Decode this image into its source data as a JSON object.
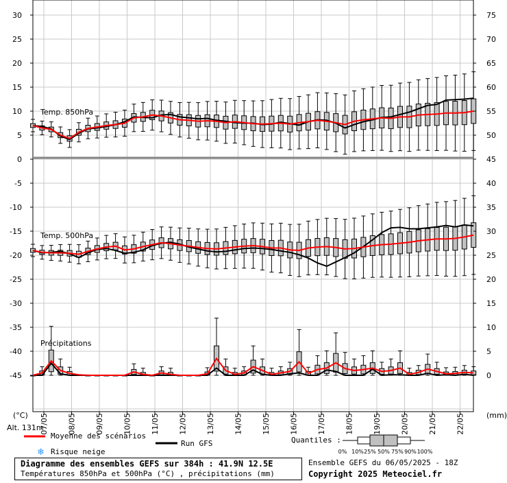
{
  "header": {
    "title": "Diagramme des ensembles GEFS sur 384h : 41.9N 12.5E",
    "subtitle": "Températures 850hPa et 500hPa (°C) , précipitations (mm)",
    "run_info": "Ensemble GEFS du 06/05/2025 - 18Z",
    "copyright": "Copyright 2025 Meteociel.fr"
  },
  "labels": {
    "temp850": "Temp. 850hPa",
    "temp500": "Temp. 500hPa",
    "precip": "Précipitations",
    "unit_left": "(°C)",
    "unit_right": "(mm)",
    "altitude": "Alt. 131m"
  },
  "legend": {
    "mean": "Moyenne des scénarios",
    "run": "Run GFS",
    "snow": "Risque neige",
    "quantiles": "Quantiles :",
    "quantile_ticks": [
      "0%",
      "10%",
      "25%",
      "50%",
      "75%",
      "90%",
      "100%"
    ]
  },
  "colors": {
    "mean": "#ff0000",
    "run": "#000000",
    "box": "#c0c0c0",
    "grid": "#c8c8c8",
    "snow": "#3399ff"
  },
  "chart_data": {
    "type": "box",
    "x_dates": [
      "07/05",
      "08/05",
      "09/05",
      "10/05",
      "11/05",
      "12/05",
      "13/05",
      "14/05",
      "15/05",
      "16/05",
      "17/05",
      "18/05",
      "19/05",
      "20/05",
      "21/05",
      "22/05"
    ],
    "left_axis_ticks": [
      30,
      25,
      20,
      15,
      10,
      5,
      0,
      -5,
      -10,
      -15,
      -20,
      -25,
      -30,
      -35,
      -40,
      -45
    ],
    "right_axis_ticks": [
      75,
      70,
      65,
      60,
      55,
      50,
      45,
      40,
      35,
      30,
      25,
      20,
      15,
      10,
      5,
      0
    ],
    "grid": true,
    "series": [
      {
        "name": "Temp. 850hPa",
        "mean": [
          7,
          6.5,
          6.2,
          5,
          4.3,
          5.6,
          6.4,
          6.7,
          7,
          7.2,
          7.5,
          8.6,
          8.8,
          9.2,
          9,
          8.6,
          8.2,
          8.1,
          7.9,
          8,
          7.9,
          7.6,
          7.8,
          7.6,
          7.4,
          7.3,
          7.4,
          7.5,
          7.3,
          7.6,
          7.8,
          8.1,
          7.9,
          7.6,
          7.2,
          7.9,
          8.2,
          8.4,
          8.6,
          8.5,
          8.8,
          8.8,
          9.2,
          9.3,
          9.4,
          9.6,
          9.6,
          9.7,
          10
        ],
        "run": [
          7,
          6.8,
          6.3,
          4.8,
          4.1,
          5.4,
          6.3,
          6.5,
          6.8,
          7.2,
          7.8,
          8.8,
          8.7,
          8.6,
          9.2,
          9.3,
          8.8,
          8.6,
          8.4,
          8.5,
          8.1,
          7.9,
          7.6,
          7.5,
          7.5,
          7.2,
          7.3,
          7.7,
          7.4,
          7.1,
          7.8,
          8.2,
          8.1,
          7.5,
          6.5,
          7.2,
          7.8,
          8.2,
          8.7,
          8.8,
          9.3,
          9.8,
          10.5,
          11.2,
          11.4,
          12.3,
          12.4,
          12.5,
          12.7
        ]
      },
      {
        "name": "Temp. 500hPa",
        "mean": [
          -19,
          -19.4,
          -19.5,
          -19.5,
          -19.6,
          -19.8,
          -19.2,
          -18.7,
          -18.3,
          -18.1,
          -18.9,
          -18.7,
          -18.2,
          -17.8,
          -17.4,
          -17.6,
          -17.9,
          -18.1,
          -18.4,
          -18.6,
          -18.7,
          -18.5,
          -18.3,
          -18.1,
          -18,
          -18.2,
          -18.5,
          -18.5,
          -18.9,
          -19,
          -18.5,
          -18.3,
          -18.2,
          -18.4,
          -18.7,
          -18.6,
          -18.3,
          -18,
          -17.8,
          -17.7,
          -17.5,
          -17.3,
          -17,
          -16.8,
          -16.6,
          -16.6,
          -16.5,
          -16.2,
          -15.8
        ],
        "run": [
          -19,
          -19.5,
          -19.4,
          -19.2,
          -19.7,
          -20.5,
          -19.5,
          -18.8,
          -18.6,
          -19,
          -19.6,
          -19.4,
          -18.9,
          -18,
          -17.5,
          -17.3,
          -17.7,
          -18.3,
          -18.7,
          -19.1,
          -19.3,
          -19.2,
          -18.9,
          -18.6,
          -18.5,
          -18.6,
          -18.8,
          -19.1,
          -19.4,
          -19.9,
          -20.6,
          -21.6,
          -22.3,
          -21.4,
          -20.5,
          -19.5,
          -18.2,
          -16.8,
          -15.3,
          -14.3,
          -14.2,
          -14.5,
          -14.5,
          -14.3,
          -14.1,
          -13.8,
          -14.1,
          -13.7,
          -13.9
        ]
      },
      {
        "name": "Précipitations",
        "mean": [
          0,
          0.5,
          3,
          1,
          0.4,
          0.1,
          0,
          0,
          0,
          0,
          0,
          0.7,
          0.2,
          0,
          0.5,
          0.2,
          0,
          0,
          0,
          0.3,
          3.5,
          1,
          0.2,
          0.5,
          1.8,
          1,
          0.2,
          0.5,
          0.8,
          2.8,
          0.4,
          1.2,
          1.5,
          2.6,
          1.4,
          1,
          1.2,
          1.5,
          0.8,
          1,
          1.5,
          0.2,
          0.6,
          1.3,
          0.8,
          0.3,
          0.4,
          0.6,
          0.5
        ],
        "run": [
          0,
          0,
          2.5,
          0.3,
          0,
          0,
          0,
          0,
          0,
          0,
          0,
          0,
          0,
          0,
          0,
          0,
          0,
          0,
          0,
          0,
          1.5,
          0,
          0,
          0,
          1.1,
          0.2,
          0,
          0,
          0.3,
          0.5,
          0,
          0,
          1.1,
          0.8,
          0,
          0,
          0,
          1.3,
          0,
          0.1,
          0.1,
          0,
          0,
          0.4,
          0,
          0.1,
          0,
          0.2,
          0
        ]
      }
    ]
  }
}
